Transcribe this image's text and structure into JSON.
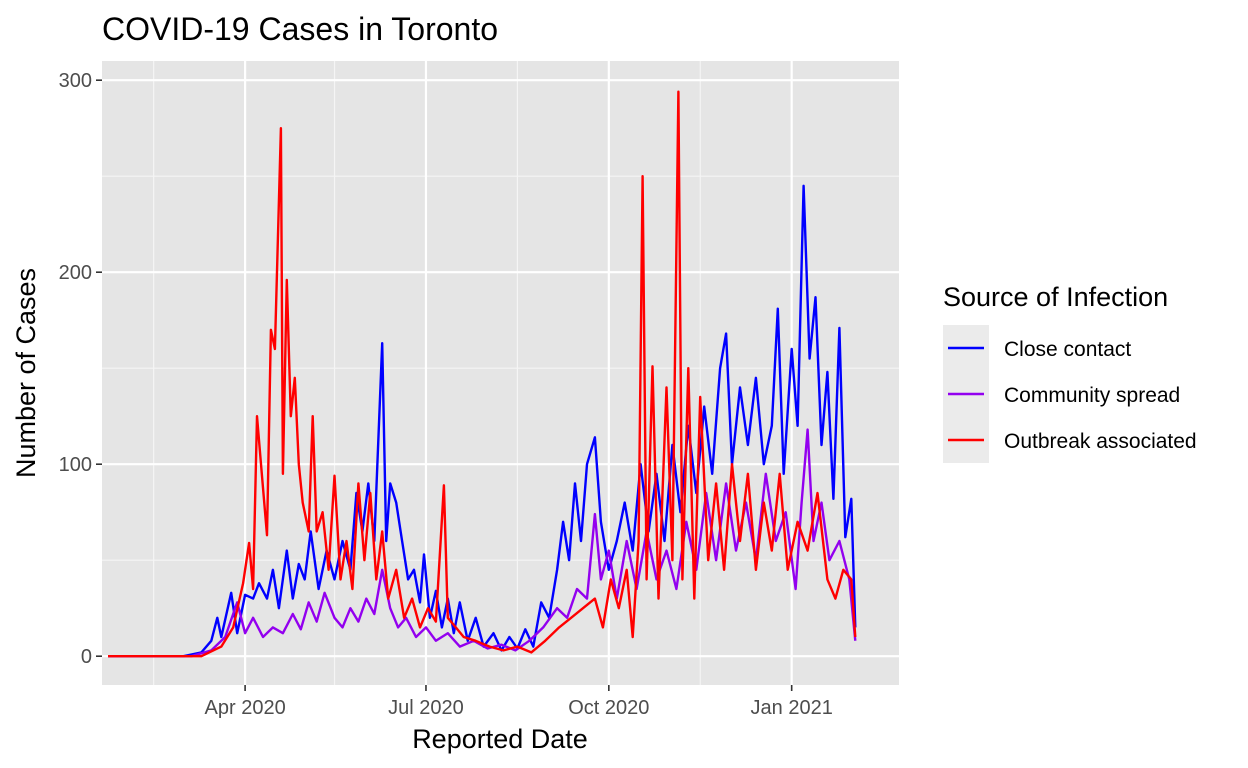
{
  "chart_data": {
    "type": "line",
    "title": "COVID-19 Cases in Toronto",
    "xlabel": "Reported Date",
    "ylabel": "Number of Cases",
    "x_range": [
      "2020-01-20",
      "2021-02-24"
    ],
    "ylim": [
      -15,
      310
    ],
    "x_ticks": [
      {
        "date": "2020-04-01",
        "label": "Apr 2020"
      },
      {
        "date": "2020-07-01",
        "label": "Jul 2020"
      },
      {
        "date": "2020-10-01",
        "label": "Oct 2020"
      },
      {
        "date": "2021-01-01",
        "label": "Jan 2021"
      }
    ],
    "x_minor_ticks": [
      "2020-02-15",
      "2020-05-16",
      "2020-08-16",
      "2020-11-16"
    ],
    "y_ticks": [
      0,
      100,
      200,
      300
    ],
    "minor_y_ticks": [
      50,
      150,
      250
    ],
    "grid": true,
    "panel_background": "#e5e5e5",
    "legend": {
      "title": "Source of Infection",
      "position": "right"
    },
    "series": [
      {
        "name": "Close contact",
        "color": "#0000ff",
        "points": [
          [
            "2020-01-23",
            0
          ],
          [
            "2020-03-01",
            0
          ],
          [
            "2020-03-10",
            2
          ],
          [
            "2020-03-15",
            8
          ],
          [
            "2020-03-18",
            20
          ],
          [
            "2020-03-20",
            10
          ],
          [
            "2020-03-25",
            33
          ],
          [
            "2020-03-28",
            12
          ],
          [
            "2020-04-01",
            32
          ],
          [
            "2020-04-05",
            30
          ],
          [
            "2020-04-08",
            38
          ],
          [
            "2020-04-12",
            30
          ],
          [
            "2020-04-15",
            45
          ],
          [
            "2020-04-18",
            25
          ],
          [
            "2020-04-22",
            55
          ],
          [
            "2020-04-25",
            30
          ],
          [
            "2020-04-28",
            48
          ],
          [
            "2020-05-01",
            40
          ],
          [
            "2020-05-04",
            65
          ],
          [
            "2020-05-08",
            35
          ],
          [
            "2020-05-12",
            55
          ],
          [
            "2020-05-16",
            40
          ],
          [
            "2020-05-20",
            60
          ],
          [
            "2020-05-24",
            45
          ],
          [
            "2020-05-27",
            85
          ],
          [
            "2020-05-30",
            65
          ],
          [
            "2020-06-02",
            90
          ],
          [
            "2020-06-05",
            60
          ],
          [
            "2020-06-09",
            163
          ],
          [
            "2020-06-11",
            60
          ],
          [
            "2020-06-13",
            90
          ],
          [
            "2020-06-16",
            80
          ],
          [
            "2020-06-19",
            60
          ],
          [
            "2020-06-22",
            40
          ],
          [
            "2020-06-25",
            45
          ],
          [
            "2020-06-28",
            28
          ],
          [
            "2020-06-30",
            53
          ],
          [
            "2020-07-03",
            20
          ],
          [
            "2020-07-06",
            34
          ],
          [
            "2020-07-09",
            15
          ],
          [
            "2020-07-12",
            30
          ],
          [
            "2020-07-15",
            12
          ],
          [
            "2020-07-18",
            28
          ],
          [
            "2020-07-22",
            8
          ],
          [
            "2020-07-26",
            20
          ],
          [
            "2020-07-30",
            5
          ],
          [
            "2020-08-04",
            12
          ],
          [
            "2020-08-08",
            3
          ],
          [
            "2020-08-12",
            10
          ],
          [
            "2020-08-16",
            4
          ],
          [
            "2020-08-20",
            14
          ],
          [
            "2020-08-24",
            5
          ],
          [
            "2020-08-28",
            28
          ],
          [
            "2020-09-01",
            20
          ],
          [
            "2020-09-05",
            45
          ],
          [
            "2020-09-08",
            70
          ],
          [
            "2020-09-11",
            50
          ],
          [
            "2020-09-14",
            90
          ],
          [
            "2020-09-17",
            60
          ],
          [
            "2020-09-20",
            100
          ],
          [
            "2020-09-24",
            114
          ],
          [
            "2020-09-27",
            70
          ],
          [
            "2020-10-01",
            45
          ],
          [
            "2020-10-05",
            60
          ],
          [
            "2020-10-09",
            80
          ],
          [
            "2020-10-13",
            55
          ],
          [
            "2020-10-17",
            100
          ],
          [
            "2020-10-21",
            65
          ],
          [
            "2020-10-25",
            95
          ],
          [
            "2020-10-29",
            60
          ],
          [
            "2020-11-02",
            110
          ],
          [
            "2020-11-06",
            75
          ],
          [
            "2020-11-10",
            120
          ],
          [
            "2020-11-14",
            85
          ],
          [
            "2020-11-18",
            130
          ],
          [
            "2020-11-22",
            95
          ],
          [
            "2020-11-26",
            150
          ],
          [
            "2020-11-29",
            168
          ],
          [
            "2020-12-02",
            100
          ],
          [
            "2020-12-06",
            140
          ],
          [
            "2020-12-10",
            110
          ],
          [
            "2020-12-14",
            145
          ],
          [
            "2020-12-18",
            100
          ],
          [
            "2020-12-22",
            120
          ],
          [
            "2020-12-25",
            181
          ],
          [
            "2020-12-28",
            95
          ],
          [
            "2021-01-01",
            160
          ],
          [
            "2021-01-04",
            120
          ],
          [
            "2021-01-07",
            245
          ],
          [
            "2021-01-10",
            155
          ],
          [
            "2021-01-13",
            187
          ],
          [
            "2021-01-16",
            110
          ],
          [
            "2021-01-19",
            148
          ],
          [
            "2021-01-22",
            82
          ],
          [
            "2021-01-25",
            171
          ],
          [
            "2021-01-28",
            62
          ],
          [
            "2021-01-31",
            82
          ],
          [
            "2021-02-02",
            15
          ]
        ]
      },
      {
        "name": "Community spread",
        "color": "#9300ef",
        "points": [
          [
            "2020-01-23",
            0
          ],
          [
            "2020-03-05",
            0
          ],
          [
            "2020-03-15",
            3
          ],
          [
            "2020-03-22",
            10
          ],
          [
            "2020-03-28",
            28
          ],
          [
            "2020-04-01",
            12
          ],
          [
            "2020-04-05",
            20
          ],
          [
            "2020-04-10",
            10
          ],
          [
            "2020-04-15",
            15
          ],
          [
            "2020-04-20",
            12
          ],
          [
            "2020-04-25",
            22
          ],
          [
            "2020-04-29",
            14
          ],
          [
            "2020-05-03",
            28
          ],
          [
            "2020-05-07",
            18
          ],
          [
            "2020-05-11",
            33
          ],
          [
            "2020-05-16",
            20
          ],
          [
            "2020-05-20",
            15
          ],
          [
            "2020-05-24",
            25
          ],
          [
            "2020-05-28",
            18
          ],
          [
            "2020-06-01",
            30
          ],
          [
            "2020-06-05",
            22
          ],
          [
            "2020-06-09",
            45
          ],
          [
            "2020-06-13",
            25
          ],
          [
            "2020-06-17",
            15
          ],
          [
            "2020-06-21",
            20
          ],
          [
            "2020-06-26",
            10
          ],
          [
            "2020-07-01",
            15
          ],
          [
            "2020-07-06",
            8
          ],
          [
            "2020-07-12",
            12
          ],
          [
            "2020-07-18",
            5
          ],
          [
            "2020-07-25",
            8
          ],
          [
            "2020-08-01",
            4
          ],
          [
            "2020-08-08",
            6
          ],
          [
            "2020-08-15",
            3
          ],
          [
            "2020-08-22",
            8
          ],
          [
            "2020-08-29",
            15
          ],
          [
            "2020-09-05",
            25
          ],
          [
            "2020-09-10",
            20
          ],
          [
            "2020-09-15",
            35
          ],
          [
            "2020-09-20",
            30
          ],
          [
            "2020-09-24",
            74
          ],
          [
            "2020-09-27",
            40
          ],
          [
            "2020-10-01",
            55
          ],
          [
            "2020-10-05",
            30
          ],
          [
            "2020-10-10",
            60
          ],
          [
            "2020-10-15",
            35
          ],
          [
            "2020-10-20",
            65
          ],
          [
            "2020-10-25",
            40
          ],
          [
            "2020-10-30",
            55
          ],
          [
            "2020-11-04",
            35
          ],
          [
            "2020-11-09",
            70
          ],
          [
            "2020-11-14",
            45
          ],
          [
            "2020-11-19",
            85
          ],
          [
            "2020-11-24",
            50
          ],
          [
            "2020-11-29",
            90
          ],
          [
            "2020-12-04",
            55
          ],
          [
            "2020-12-09",
            80
          ],
          [
            "2020-12-14",
            50
          ],
          [
            "2020-12-19",
            95
          ],
          [
            "2020-12-24",
            60
          ],
          [
            "2020-12-29",
            75
          ],
          [
            "2021-01-03",
            35
          ],
          [
            "2021-01-06",
            80
          ],
          [
            "2021-01-09",
            118
          ],
          [
            "2021-01-12",
            60
          ],
          [
            "2021-01-16",
            80
          ],
          [
            "2021-01-20",
            50
          ],
          [
            "2021-01-25",
            60
          ],
          [
            "2021-01-30",
            40
          ],
          [
            "2021-02-02",
            8
          ]
        ]
      },
      {
        "name": "Outbreak associated",
        "color": "#ff0000",
        "points": [
          [
            "2020-01-23",
            0
          ],
          [
            "2020-03-10",
            0
          ],
          [
            "2020-03-20",
            5
          ],
          [
            "2020-03-26",
            15
          ],
          [
            "2020-03-31",
            38
          ],
          [
            "2020-04-03",
            59
          ],
          [
            "2020-04-05",
            35
          ],
          [
            "2020-04-07",
            125
          ],
          [
            "2020-04-09",
            100
          ],
          [
            "2020-04-12",
            63
          ],
          [
            "2020-04-14",
            170
          ],
          [
            "2020-04-16",
            160
          ],
          [
            "2020-04-19",
            275
          ],
          [
            "2020-04-20",
            95
          ],
          [
            "2020-04-22",
            196
          ],
          [
            "2020-04-24",
            125
          ],
          [
            "2020-04-26",
            145
          ],
          [
            "2020-04-28",
            100
          ],
          [
            "2020-04-30",
            80
          ],
          [
            "2020-05-03",
            65
          ],
          [
            "2020-05-05",
            125
          ],
          [
            "2020-05-07",
            65
          ],
          [
            "2020-05-10",
            75
          ],
          [
            "2020-05-13",
            45
          ],
          [
            "2020-05-16",
            94
          ],
          [
            "2020-05-19",
            40
          ],
          [
            "2020-05-22",
            60
          ],
          [
            "2020-05-25",
            35
          ],
          [
            "2020-05-28",
            90
          ],
          [
            "2020-05-31",
            50
          ],
          [
            "2020-06-03",
            85
          ],
          [
            "2020-06-06",
            40
          ],
          [
            "2020-06-09",
            65
          ],
          [
            "2020-06-12",
            30
          ],
          [
            "2020-06-16",
            45
          ],
          [
            "2020-06-20",
            20
          ],
          [
            "2020-06-24",
            30
          ],
          [
            "2020-06-28",
            15
          ],
          [
            "2020-07-02",
            25
          ],
          [
            "2020-07-06",
            18
          ],
          [
            "2020-07-10",
            89
          ],
          [
            "2020-07-12",
            20
          ],
          [
            "2020-07-16",
            15
          ],
          [
            "2020-07-20",
            10
          ],
          [
            "2020-07-26",
            8
          ],
          [
            "2020-08-02",
            5
          ],
          [
            "2020-08-09",
            3
          ],
          [
            "2020-08-16",
            5
          ],
          [
            "2020-08-23",
            2
          ],
          [
            "2020-08-30",
            8
          ],
          [
            "2020-09-06",
            15
          ],
          [
            "2020-09-12",
            20
          ],
          [
            "2020-09-18",
            25
          ],
          [
            "2020-09-24",
            30
          ],
          [
            "2020-09-28",
            15
          ],
          [
            "2020-10-02",
            40
          ],
          [
            "2020-10-06",
            25
          ],
          [
            "2020-10-10",
            45
          ],
          [
            "2020-10-13",
            10
          ],
          [
            "2020-10-16",
            60
          ],
          [
            "2020-10-18",
            250
          ],
          [
            "2020-10-20",
            40
          ],
          [
            "2020-10-23",
            151
          ],
          [
            "2020-10-26",
            30
          ],
          [
            "2020-10-30",
            140
          ],
          [
            "2020-11-02",
            50
          ],
          [
            "2020-11-05",
            294
          ],
          [
            "2020-11-07",
            40
          ],
          [
            "2020-11-10",
            150
          ],
          [
            "2020-11-13",
            30
          ],
          [
            "2020-11-16",
            135
          ],
          [
            "2020-11-20",
            50
          ],
          [
            "2020-11-24",
            90
          ],
          [
            "2020-11-28",
            45
          ],
          [
            "2020-12-02",
            100
          ],
          [
            "2020-12-06",
            60
          ],
          [
            "2020-12-10",
            95
          ],
          [
            "2020-12-14",
            45
          ],
          [
            "2020-12-18",
            80
          ],
          [
            "2020-12-22",
            55
          ],
          [
            "2020-12-26",
            95
          ],
          [
            "2020-12-30",
            45
          ],
          [
            "2021-01-04",
            70
          ],
          [
            "2021-01-09",
            55
          ],
          [
            "2021-01-14",
            85
          ],
          [
            "2021-01-19",
            40
          ],
          [
            "2021-01-23",
            30
          ],
          [
            "2021-01-27",
            45
          ],
          [
            "2021-01-31",
            40
          ],
          [
            "2021-02-02",
            10
          ]
        ]
      }
    ]
  }
}
